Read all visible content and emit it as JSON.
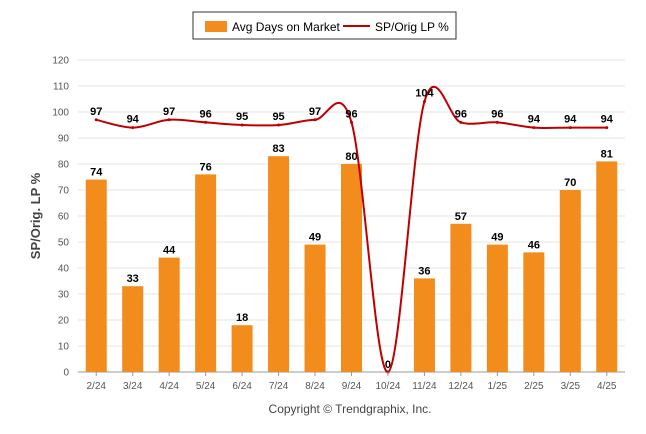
{
  "chart_data": {
    "type": "bar",
    "categories": [
      "2/24",
      "3/24",
      "4/24",
      "5/24",
      "6/24",
      "7/24",
      "8/24",
      "9/24",
      "10/24",
      "11/24",
      "12/24",
      "1/25",
      "2/25",
      "3/25",
      "4/25"
    ],
    "series": [
      {
        "name": "Avg Days on Market",
        "type": "bar",
        "color": "#F28C1C",
        "values": [
          74,
          33,
          44,
          76,
          18,
          83,
          49,
          80,
          0,
          36,
          57,
          49,
          46,
          70,
          81
        ]
      },
      {
        "name": "SP/Orig LP %",
        "type": "line",
        "color": "#C00000",
        "values": [
          97,
          94,
          97,
          96,
          95,
          95,
          97,
          96,
          0,
          104,
          96,
          96,
          94,
          94,
          94
        ]
      }
    ],
    "ylabel": "SP/Orig. LP %",
    "ylim": [
      0,
      120
    ],
    "yticks": [
      0,
      10,
      20,
      30,
      40,
      50,
      60,
      70,
      80,
      90,
      100,
      110,
      120
    ],
    "grid": true,
    "legend": "top-center"
  },
  "footer": "Copyright © Trendgraphix, Inc."
}
